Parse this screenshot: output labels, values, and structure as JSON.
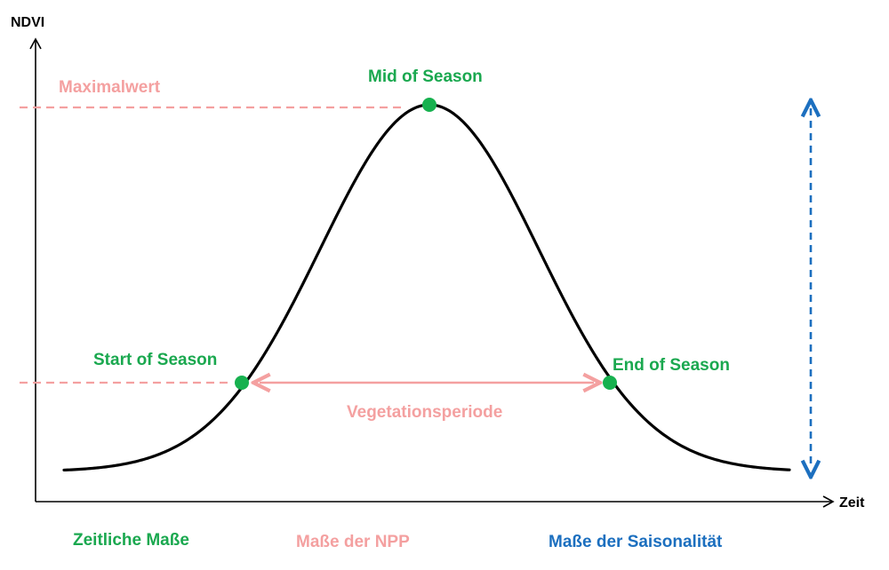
{
  "axes": {
    "y_label": "NDVI",
    "x_label": "Zeit"
  },
  "labels": {
    "max_value": "Maximalwert",
    "mid_of_season": "Mid of Season",
    "start_of_season": "Start of Season",
    "end_of_season": "End of Season",
    "vegetation_period": "Vegetationsperiode"
  },
  "legend": {
    "temporal": "Zeitliche Maße",
    "npp": "Maße der NPP",
    "seasonality": "Maße der Saisonalität"
  },
  "colors": {
    "curve": "#000000",
    "season_points": "#17b14f",
    "green_text": "#1aa84f",
    "pink": "#f4a0a0",
    "blue": "#1c6fbf"
  }
}
